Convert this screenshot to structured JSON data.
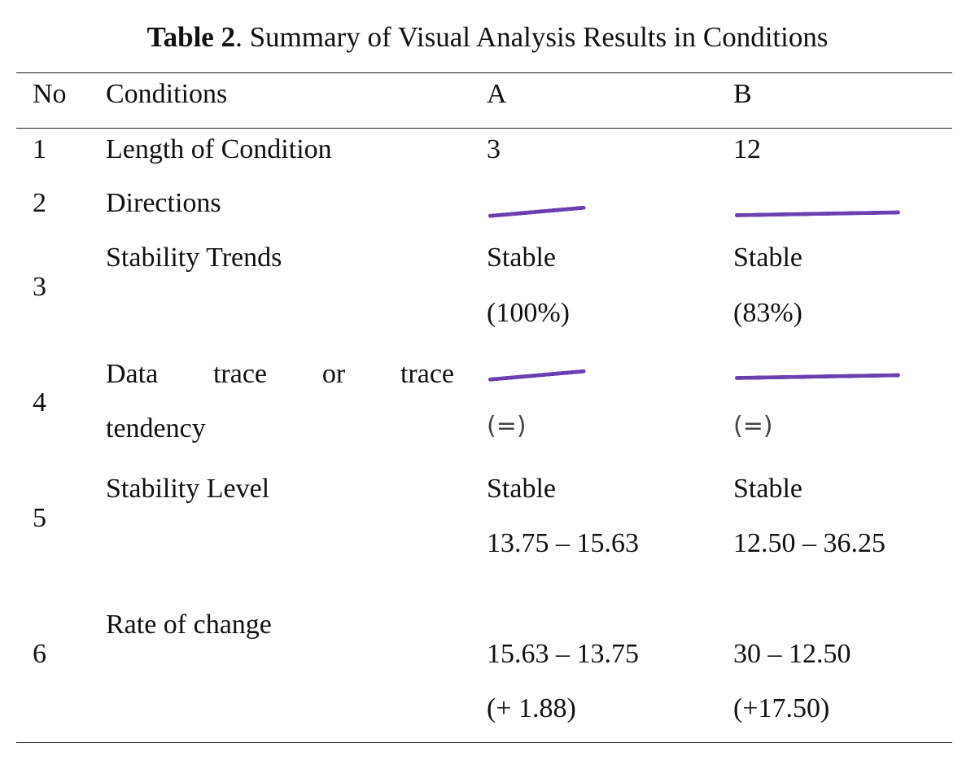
{
  "table": {
    "caption_label": "Table 2",
    "caption_text": ". Summary of Visual Analysis Results in Conditions",
    "headers": {
      "no": "No",
      "conditions": "Conditions",
      "a": "A",
      "b": "B"
    },
    "rows": [
      {
        "no": "1",
        "condition": "Length of Condition",
        "a": "3",
        "b": "12"
      },
      {
        "no": "2",
        "condition": "Directions",
        "a_icon": "upward-trend-line-icon",
        "b_icon": "upward-trend-line-icon"
      },
      {
        "no": "3",
        "condition": "Stability Trends",
        "a_line1": "Stable",
        "a_line2": "(100%)",
        "b_line1": "Stable",
        "b_line2": "(83%)"
      },
      {
        "no": "4",
        "condition_words": [
          "Data",
          "trace",
          "or",
          "trace"
        ],
        "condition_line2": "tendency",
        "a_icon": "upward-trend-line-icon",
        "a_mark": "(=)",
        "b_icon": "upward-trend-line-icon",
        "b_mark": "(=)"
      },
      {
        "no": "5",
        "condition": "Stability Level",
        "a_line1": "Stable",
        "a_line2": "13.75 – 15.63",
        "b_line1": "Stable",
        "b_line2": "12.50 – 36.25"
      },
      {
        "no": "6",
        "condition": "Rate of change",
        "a_line1": "15.63 – 13.75",
        "a_line2": "(+ 1.88)",
        "b_line1": "30 – 12.50",
        "b_line2": "(+17.50)"
      }
    ],
    "colors": {
      "trend_line": "#6a3fb0",
      "text": "#111111",
      "rule": "#222222"
    }
  }
}
